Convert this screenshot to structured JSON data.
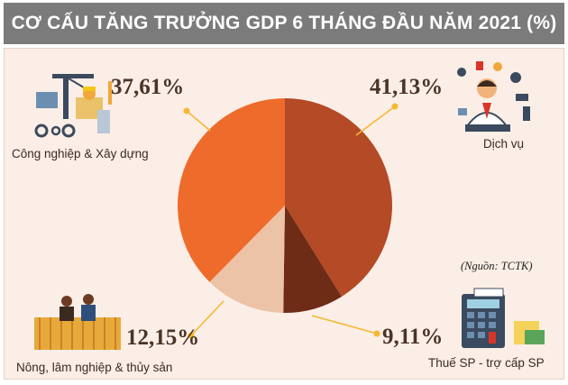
{
  "title": "CƠ CẤU TĂNG TRƯỞNG GDP 6 THÁNG ĐẦU NĂM 2021 (%)",
  "source": "(Nguồn: TCTK)",
  "colors": {
    "title_bar": "#7b7b7b",
    "panel": "#fbeee6",
    "leader_dot": "#f7b733"
  },
  "chart_data": {
    "type": "pie",
    "title": "CƠ CẤU TĂNG TRƯỞNG GDP 6 THÁNG ĐẦU NĂM 2021 (%)",
    "slices": [
      {
        "label": "Dịch vụ",
        "value": 41.13,
        "value_label": "41,13%",
        "color": "#b44a26",
        "icon": "service-worker-icon"
      },
      {
        "label": "Thuế SP - trợ cấp SP",
        "value": 9.11,
        "value_label": "9,11%",
        "color": "#6e2c17",
        "icon": "calculator-taxes-icon"
      },
      {
        "label": "Nông, lâm nghiệp & thủy sản",
        "value": 12.15,
        "value_label": "12,15%",
        "color": "#ecc3a6",
        "icon": "farmers-field-icon"
      },
      {
        "label": "Công nghiệp & Xây dựng",
        "value": 37.61,
        "value_label": "37,61%",
        "color": "#ee6b2b",
        "icon": "construction-industry-icon"
      }
    ],
    "legend": "none"
  }
}
